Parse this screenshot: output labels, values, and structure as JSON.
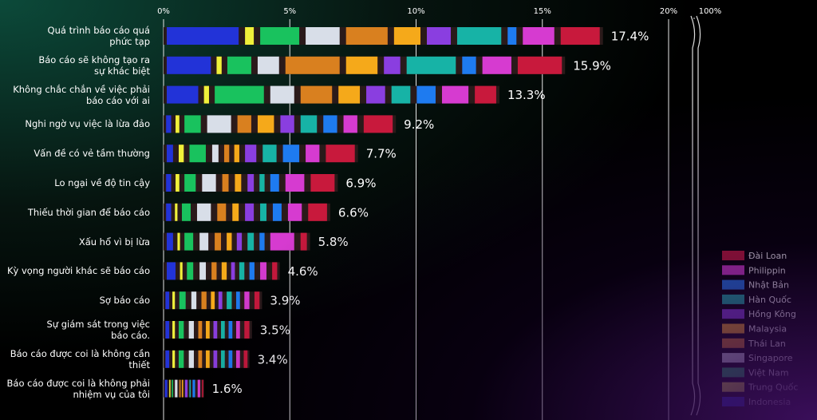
{
  "chart_data": {
    "type": "stacked-bar-horizontal",
    "categories": [
      "Quá trình báo cáo quá\nphức tạp",
      "Báo cáo sẽ không tạo ra\nsự khác biệt",
      "Không chắc chắn về việc phải\nbáo cáo với ai",
      "Nghi ngờ vụ việc là lừa đảo",
      "Vấn đề có vẻ tầm thường",
      "Lo ngại về độ tin cậy",
      "Thiếu thời gian để báo cáo",
      "Xấu hổ vì bị lừa",
      "Kỳ vọng người khác sẽ báo cáo",
      "Sợ báo cáo",
      "Sự giám sát trong việc\nbáo cáo.",
      "Báo cáo được coi là không cần\nthiết",
      "Báo cáo được coi là không phải\nnhiệm vụ của tôi"
    ],
    "series": [
      {
        "name": "Đài Loan",
        "color": "#c8193c",
        "values": [
          1.8,
          2.0,
          1.1,
          1.4,
          1.4,
          1.2,
          1.0,
          0.5,
          0.4,
          0.4,
          0.4,
          0.3,
          0.1
        ]
      },
      {
        "name": "Philippin",
        "color": "#d63bd0",
        "values": [
          1.5,
          1.4,
          1.3,
          0.8,
          0.8,
          1.0,
          0.8,
          1.2,
          0.5,
          0.4,
          0.3,
          0.3,
          0.2
        ]
      },
      {
        "name": "Nhật Bản",
        "color": "#1e7bf0",
        "values": [
          0.6,
          0.8,
          1.0,
          0.8,
          0.9,
          0.6,
          0.6,
          0.4,
          0.4,
          0.3,
          0.3,
          0.3,
          0.2
        ]
      },
      {
        "name": "Hàn Quốc",
        "color": "#17b3a6",
        "values": [
          2.0,
          2.2,
          1.0,
          0.9,
          0.8,
          0.4,
          0.5,
          0.5,
          0.4,
          0.4,
          0.3,
          0.3,
          0.1
        ]
      },
      {
        "name": "Hồng Kông",
        "color": "#8a3ee0",
        "values": [
          1.2,
          0.9,
          1.0,
          0.8,
          0.7,
          0.5,
          0.6,
          0.4,
          0.3,
          0.3,
          0.3,
          0.3,
          0.2
        ]
      },
      {
        "name": "Malaysia",
        "color": "#f5a91a",
        "values": [
          1.3,
          1.5,
          1.1,
          0.9,
          0.4,
          0.5,
          0.5,
          0.4,
          0.4,
          0.3,
          0.3,
          0.3,
          0.1
        ]
      },
      {
        "name": "Thái Lan",
        "color": "#d9801f",
        "values": [
          1.9,
          2.4,
          1.5,
          0.8,
          0.4,
          0.5,
          0.6,
          0.5,
          0.4,
          0.4,
          0.3,
          0.3,
          0.1
        ]
      },
      {
        "name": "Singapore",
        "color": "#d8dee8",
        "values": [
          1.6,
          1.1,
          1.2,
          1.2,
          0.5,
          0.8,
          0.8,
          0.6,
          0.5,
          0.4,
          0.4,
          0.4,
          0.2
        ]
      },
      {
        "name": "Việt Nam",
        "color": "#19c25e",
        "values": [
          1.8,
          1.2,
          2.2,
          0.9,
          0.9,
          0.7,
          0.6,
          0.6,
          0.5,
          0.5,
          0.4,
          0.4,
          0.1
        ]
      },
      {
        "name": "Trung Quốc",
        "color": "#f0f03a",
        "values": [
          0.6,
          0.4,
          0.4,
          0.3,
          0.4,
          0.3,
          0.2,
          0.2,
          0.2,
          0.2,
          0.2,
          0.2,
          0.1
        ]
      },
      {
        "name": "Indonesia",
        "color": "#2233d8",
        "values": [
          3.1,
          2.0,
          1.5,
          0.4,
          0.5,
          0.4,
          0.4,
          0.5,
          0.6,
          0.3,
          0.3,
          0.3,
          0.2
        ]
      }
    ],
    "totals": {
      "values": [
        17.4,
        15.9,
        13.3,
        9.2,
        7.7,
        6.9,
        6.6,
        5.8,
        4.6,
        3.9,
        3.5,
        3.4,
        1.6
      ],
      "value_labels": [
        "17.4%",
        "15.9%",
        "13.3%",
        "9.2%",
        "7.7%",
        "6.9%",
        "6.6%",
        "5.8%",
        "4.6%",
        "3.9%",
        "3.5%",
        "3.4%",
        "1.6%"
      ]
    },
    "xlim": [
      0,
      20
    ],
    "xticks": [
      {
        "value": 0,
        "label": "0%"
      },
      {
        "value": 5,
        "label": "5%"
      },
      {
        "value": 10,
        "label": "10%"
      },
      {
        "value": 15,
        "label": "15%"
      },
      {
        "value": 20,
        "label": "20%"
      }
    ],
    "break_tick": {
      "value": 100,
      "label": "100%"
    },
    "grid": true
  }
}
